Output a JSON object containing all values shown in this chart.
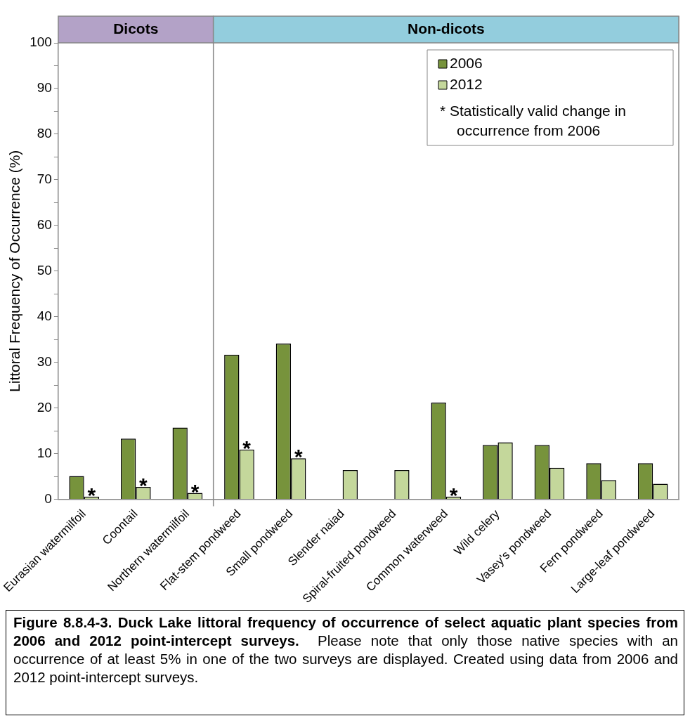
{
  "chart_data": {
    "type": "bar",
    "title": "Figure 8.8.4-3.  Duck Lake littoral frequency of occurrence of select aquatic plant species from 2006 and 2012 point-intercept surveys.",
    "subtitle": "Please note that only those native species with an occurrence of at least 5% in one of the two surveys are displayed.  Created using data from 2006 and 2012 point-intercept surveys.",
    "ylabel": "Littoral Frequency of Occurrence (%)",
    "categories": [
      "Eurasian watermilfoil",
      "Coontail",
      "Northern watermilfoil",
      "Flat-stem pondweed",
      "Small pondweed",
      "Slender naiad",
      "Spiral-fruited pondweed",
      "Common waterweed",
      "Wild celery",
      "Vasey's pondweed",
      "Fern pondweed",
      "Large-leaf pondweed"
    ],
    "series": [
      {
        "name": "2006",
        "color": "#77933c",
        "values": [
          5.1,
          13.3,
          15.7,
          31.7,
          34.1,
          null,
          null,
          21.2,
          11.9,
          11.9,
          7.9,
          7.9
        ]
      },
      {
        "name": "2012",
        "color": "#c4d79b",
        "values": [
          0.6,
          2.7,
          1.4,
          10.9,
          9.0,
          6.4,
          6.4,
          0.6,
          12.5,
          6.9,
          4.2,
          3.4
        ]
      }
    ],
    "ylim": [
      0,
      100
    ],
    "yticks": [
      0,
      {
        "value": 5,
        "label": null
      },
      10,
      {
        "value": 15,
        "label": null
      },
      20,
      {
        "value": 25,
        "label": null
      },
      30,
      {
        "value": 35,
        "label": null
      },
      40,
      {
        "value": 45,
        "label": null
      },
      50,
      {
        "value": 55,
        "label": null
      },
      60,
      {
        "value": 65,
        "label": null
      },
      70,
      {
        "value": 75,
        "label": null
      },
      80,
      {
        "value": 85,
        "label": null
      },
      90,
      {
        "value": 95,
        "label": null
      },
      100
    ],
    "annotations": [
      "Dicots",
      "Non-dicots",
      {
        "text": "*",
        "x": "Eurasian watermilfoil",
        "y": 0.6
      },
      {
        "text": "*",
        "x": "Coontail",
        "y": 2.7
      },
      {
        "text": "*",
        "x": "Northern watermilfoil",
        "y": 1.4
      },
      {
        "text": "*",
        "x": "Flat-stem pondweed",
        "y": 10.9
      },
      {
        "text": "*",
        "x": "Small pondweed",
        "y": 9.0
      },
      {
        "text": "*",
        "x": "Common waterweed",
        "y": 0.6
      },
      "* Statistically valid change in occurrence from 2006"
    ],
    "legend": "top right",
    "grid": false
  }
}
